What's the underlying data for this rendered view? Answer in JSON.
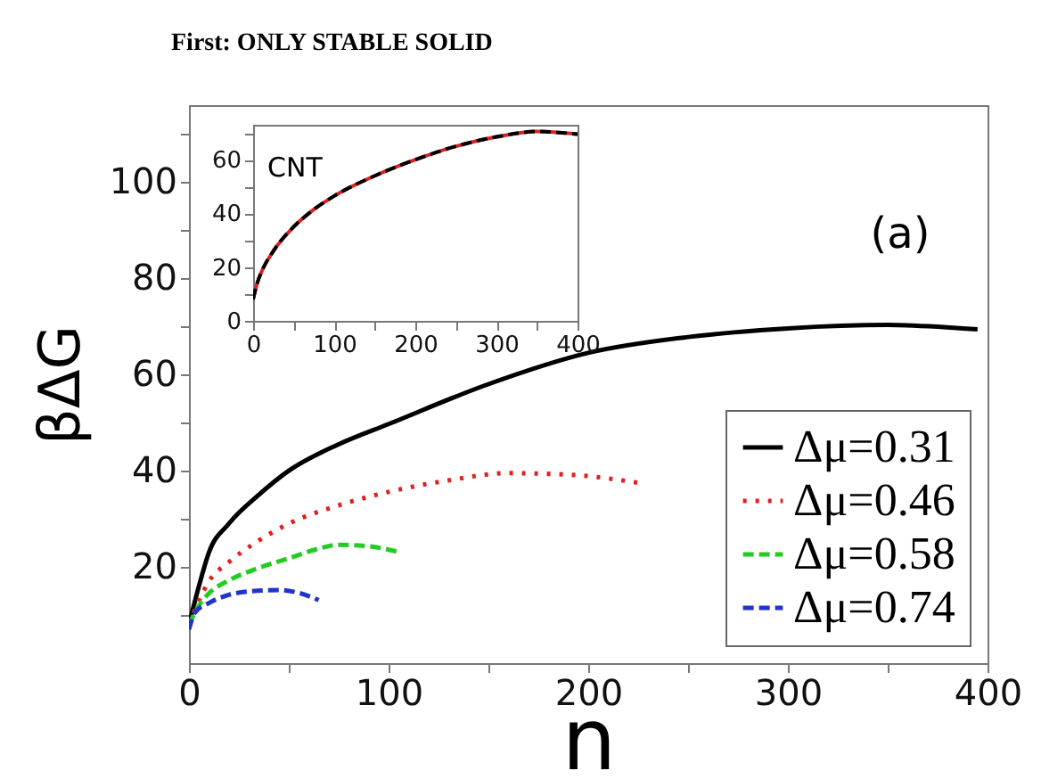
{
  "chart_data": [
    {
      "type": "line",
      "title": "First: ONLY STABLE SOLID",
      "xlabel": "n",
      "ylabel": "βΔG",
      "annotations": [
        "(a)"
      ],
      "xlim": [
        0,
        400
      ],
      "ylim": [
        0,
        116
      ],
      "xticks": [
        0,
        {
          "value": 50,
          "label": null
        },
        100,
        {
          "value": 150,
          "label": null
        },
        200,
        {
          "value": 250,
          "label": null
        },
        300,
        {
          "value": 350,
          "label": null
        },
        400
      ],
      "yticks": [
        {
          "value": 10,
          "label": null
        },
        20,
        {
          "value": 30,
          "label": null
        },
        40,
        {
          "value": 50,
          "label": null
        },
        60,
        {
          "value": 70,
          "label": null
        },
        80,
        {
          "value": 90,
          "label": null
        },
        100,
        {
          "value": 110,
          "label": null
        }
      ],
      "grid": false,
      "legend": "bottom right",
      "marker": "none",
      "series": [
        {
          "name": "Δμ=0.31",
          "color": "#000000",
          "line_style": "solid",
          "x": [
            0,
            5,
            10,
            20,
            35,
            50,
            75,
            100,
            150,
            200,
            250,
            300,
            350,
            395
          ],
          "values": [
            8,
            16,
            23,
            29,
            35,
            40,
            45.5,
            49.7,
            58,
            64.5,
            67.8,
            69.6,
            70.3,
            69.4
          ]
        },
        {
          "name": "Δμ=0.46",
          "color": "#e02020",
          "line_style": "dotted",
          "x": [
            0,
            5,
            10,
            20,
            35,
            50,
            75,
            100,
            130,
            160,
            190,
            225
          ],
          "values": [
            8,
            13,
            17,
            21,
            25.5,
            29,
            32.8,
            35.6,
            38,
            39.5,
            39.2,
            37.5
          ]
        },
        {
          "name": "Δμ=0.58",
          "color": "#22cc22",
          "line_style": "dashed",
          "x": [
            0,
            5,
            10,
            20,
            35,
            50,
            65,
            75,
            90,
            106
          ],
          "values": [
            8,
            12,
            14.5,
            17.2,
            19.8,
            21.8,
            23.8,
            24.6,
            24.3,
            23
          ]
        },
        {
          "name": "Δμ=0.74",
          "color": "#2233cc",
          "line_style": "dashed",
          "x": [
            0,
            3,
            10,
            20,
            30,
            45,
            55,
            65
          ],
          "values": [
            7,
            10.5,
            12.5,
            14.2,
            14.9,
            15.2,
            14.6,
            13.1
          ]
        }
      ]
    },
    {
      "type": "line",
      "annotations": [
        "CNT"
      ],
      "xlim": [
        0,
        400
      ],
      "ylim": [
        0,
        73
      ],
      "xticks": [
        0,
        {
          "value": 50,
          "label": null
        },
        100,
        {
          "value": 150,
          "label": null
        },
        200,
        {
          "value": 250,
          "label": null
        },
        300,
        {
          "value": 350,
          "label": null
        },
        400
      ],
      "yticks": [
        0,
        {
          "value": 10,
          "label": null
        },
        20,
        {
          "value": 30,
          "label": null
        },
        40,
        {
          "value": 50,
          "label": null
        },
        60,
        {
          "value": 70,
          "label": null
        }
      ],
      "grid": false,
      "marker": "none",
      "series": [
        {
          "color": "#e02020",
          "line_style": "solid",
          "x": [
            0,
            5,
            10,
            25,
            50,
            75,
            100,
            150,
            200,
            250,
            300,
            350,
            400
          ],
          "values": [
            8,
            14,
            18,
            26,
            35,
            41.5,
            46.5,
            54,
            60,
            65,
            68.5,
            70.5,
            69.5
          ]
        },
        {
          "color": "#000000",
          "line_style": "dashed",
          "x": [
            0,
            5,
            10,
            25,
            50,
            75,
            100,
            150,
            200,
            250,
            300,
            350,
            400
          ],
          "values": [
            8,
            14,
            18,
            26,
            35,
            41.5,
            46.5,
            54,
            60,
            65,
            68.5,
            70.5,
            69.5
          ]
        }
      ]
    }
  ]
}
